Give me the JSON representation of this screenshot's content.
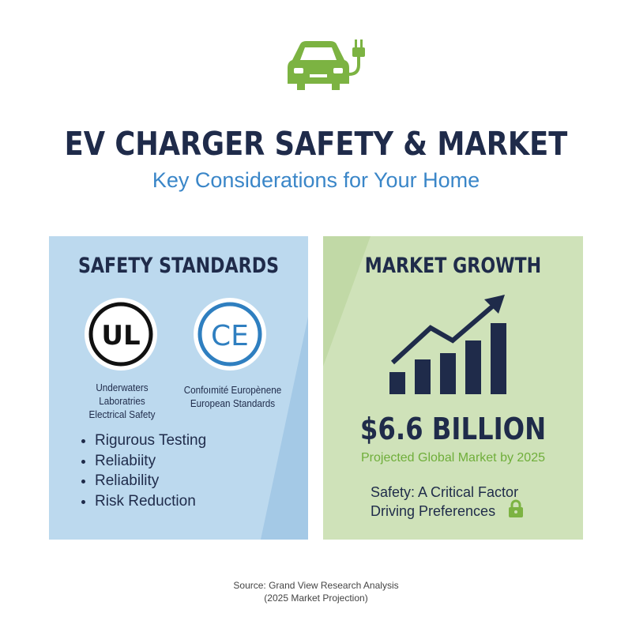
{
  "header": {
    "logo_icon": "ev-car-plug-icon",
    "title": "EV CHARGER SAFETY & MARKET",
    "subtitle": "Key Considerations for Your Home"
  },
  "safety": {
    "title": "SAFETY STANDARDS",
    "badges": [
      {
        "icon": "ul-mark-icon",
        "mark": "UL",
        "caption_lines": [
          "Underwaters",
          "Laboratries",
          "Electrical Safety"
        ]
      },
      {
        "icon": "ce-mark-icon",
        "mark": "CE",
        "caption_lines": [
          "Confoımité Europènene",
          "European Standards"
        ]
      }
    ],
    "bullets": [
      "Rigurous Testing",
      "Reliabiity",
      "Reliability",
      "Risk Reduction"
    ]
  },
  "market": {
    "title": "MARKET GROWTH",
    "chart_icon": "rising-bar-chart-icon",
    "value": "$6.6 BILLION",
    "value_caption": "Projected Global Market by 2025",
    "fact_lines": [
      "Safety: A Critical Factor",
      "Driving Preferences"
    ],
    "fact_icon": "lock-icon"
  },
  "footer": {
    "source_lines": [
      "Source: Grand View Research Analysis",
      "(2025 Market Projection)"
    ]
  },
  "colors": {
    "navy": "#1f2b4a",
    "blue": "#3a86c8",
    "green": "#7cb342",
    "left_panel": "#bcd9ee",
    "right_panel": "#cfe2b9"
  }
}
